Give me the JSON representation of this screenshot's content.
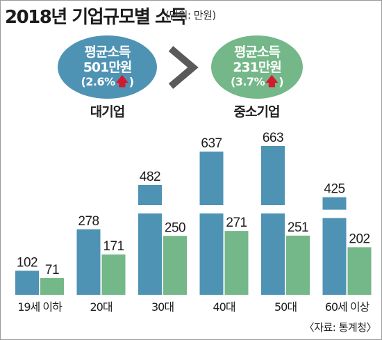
{
  "title": "2018년 기업규모별 소득",
  "unit": "(단위: 만원)",
  "summary": {
    "large": {
      "label": "평균소득",
      "amount": "501만원",
      "growth": "(2.6%",
      "growth_close": ")",
      "caption": "대기업",
      "color": "#4f93b4"
    },
    "small": {
      "label": "평균소득",
      "amount": "231만원",
      "growth": "(3.7%",
      "growth_close": ")",
      "caption": "중소기업",
      "color": "#74b788"
    },
    "icons": {
      "growth": "up-arrow-icon",
      "compare": "chevron-right-icon"
    }
  },
  "chart_data": {
    "type": "bar",
    "categories": [
      "19세 이하",
      "20대",
      "30대",
      "40대",
      "50대",
      "60세 이상"
    ],
    "series": [
      {
        "name": "대기업",
        "values": [
          102,
          278,
          482,
          637,
          663,
          425
        ],
        "color": "#4f93b4"
      },
      {
        "name": "중소기업",
        "values": [
          71,
          171,
          250,
          271,
          251,
          202
        ],
        "color": "#74b788"
      }
    ],
    "title": "",
    "xlabel": "",
    "ylabel": "",
    "axis_break": true,
    "grid": false,
    "legend": "none"
  },
  "source": "〈자료: 통계청〉"
}
